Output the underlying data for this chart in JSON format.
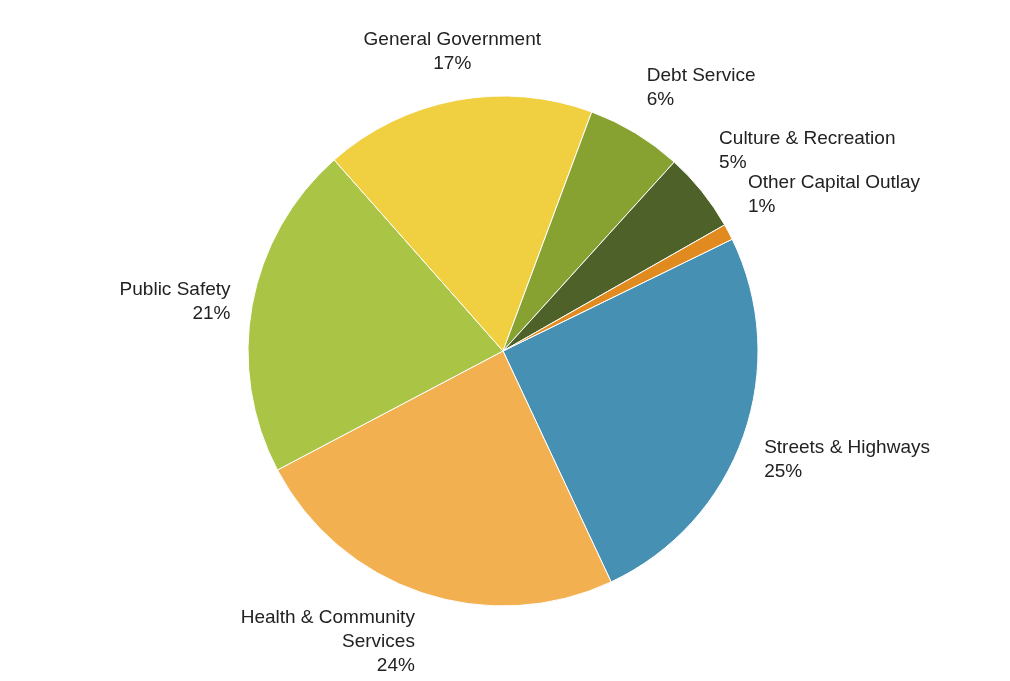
{
  "chart_data": {
    "type": "pie",
    "categories": [
      "Streets & Highways",
      "Health & Community Services",
      "Public Safety",
      "General Government",
      "Debt Service",
      "Culture & Recreation",
      "Other Capital Outlay"
    ],
    "values": [
      25,
      24,
      21,
      17,
      6,
      5,
      1
    ],
    "value_labels": [
      "25%",
      "24%",
      "21%",
      "17%",
      "6%",
      "5%",
      "1%"
    ],
    "colors": [
      "#4690b4",
      "#f2b050",
      "#aac546",
      "#f0d040",
      "#88a232",
      "#4e6128",
      "#e08a20"
    ],
    "legend": false
  }
}
